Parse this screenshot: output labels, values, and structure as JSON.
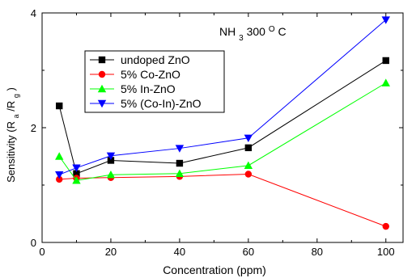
{
  "chart_data": {
    "type": "line",
    "title": {
      "main": "NH",
      "sub": "3",
      "rest1": " 300",
      "sup": "O",
      "rest2": "C"
    },
    "xlabel": "Concentration (ppm)",
    "ylabel": {
      "prefix": "Sensitivity (R",
      "sub1": "a",
      "mid": "/R",
      "sub2": "g",
      "suffix": ")"
    },
    "xlim": [
      0,
      105
    ],
    "ylim": [
      0,
      4
    ],
    "xticks": [
      0,
      20,
      40,
      60,
      80,
      100
    ],
    "yticks": [
      0,
      2,
      4
    ],
    "grid": false,
    "legend_position": "top-left",
    "series": [
      {
        "name": "undoped ZnO",
        "color": "#000000",
        "marker": "square",
        "x": [
          5,
          10,
          20,
          40,
          60,
          100
        ],
        "y": [
          2.38,
          1.2,
          1.43,
          1.38,
          1.65,
          3.17
        ]
      },
      {
        "name": "5% Co-ZnO",
        "color": "#ff0000",
        "marker": "circle",
        "x": [
          5,
          10,
          20,
          40,
          60,
          100
        ],
        "y": [
          1.1,
          1.12,
          1.13,
          1.15,
          1.19,
          0.28
        ]
      },
      {
        "name": "5% In-ZnO",
        "color": "#00ff00",
        "marker": "triangle-up",
        "x": [
          5,
          10,
          20,
          40,
          60,
          100
        ],
        "y": [
          1.5,
          1.08,
          1.18,
          1.2,
          1.34,
          2.78
        ]
      },
      {
        "name": "5% (Co-In)-ZnO",
        "color": "#0000ff",
        "marker": "triangle-down",
        "x": [
          5,
          10,
          20,
          40,
          60,
          100
        ],
        "y": [
          1.18,
          1.3,
          1.51,
          1.64,
          1.82,
          3.88
        ]
      }
    ]
  }
}
